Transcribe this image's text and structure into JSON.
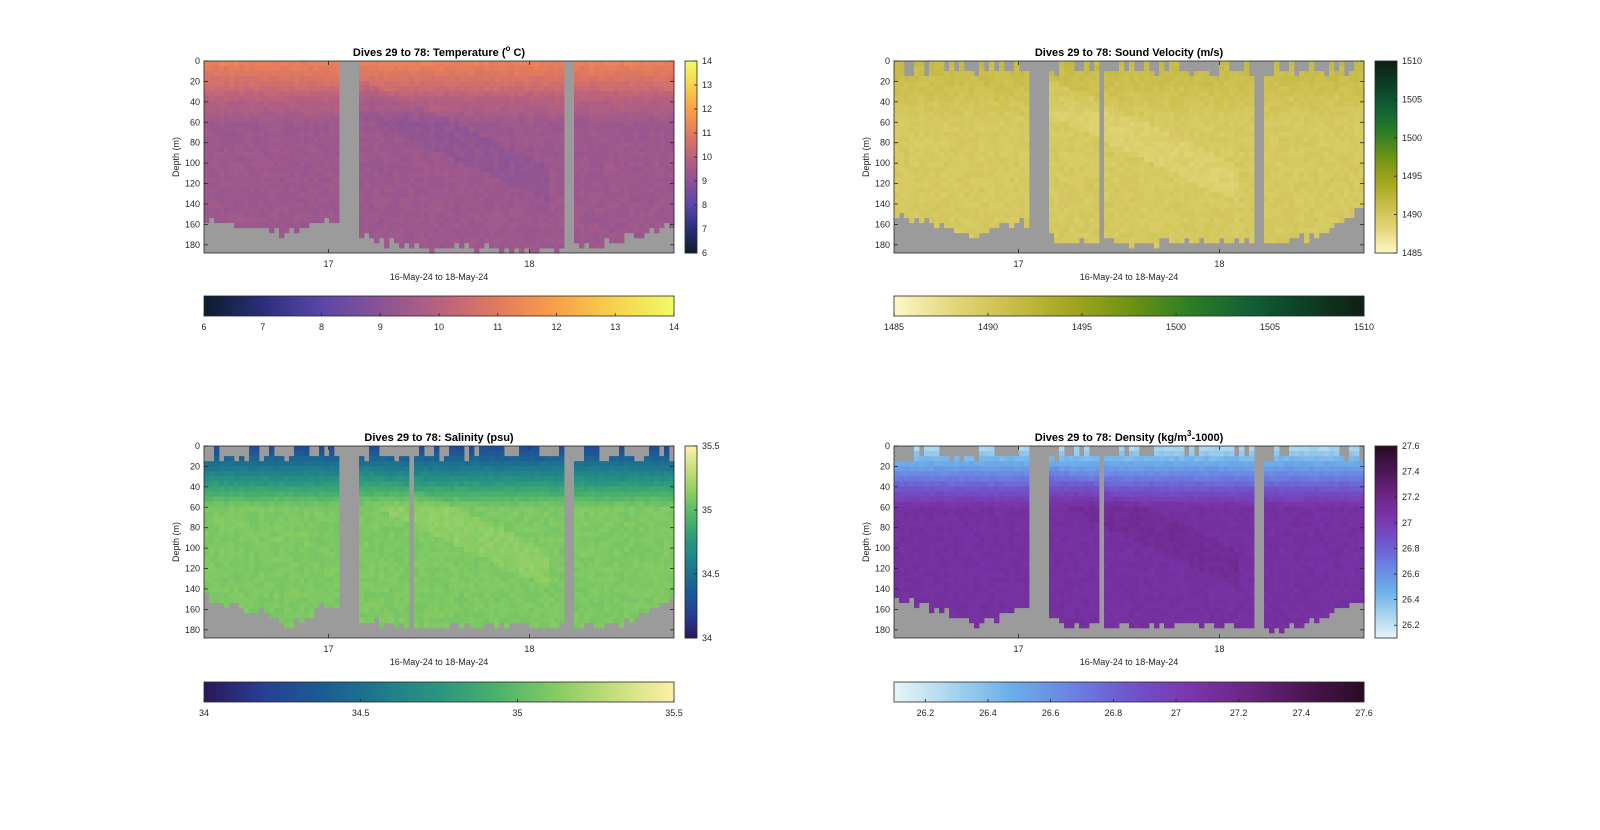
{
  "chart_data": [
    {
      "type": "heatmap",
      "id": "temperature",
      "title_main": "Dives 29 to 78: Temperature (",
      "title_sup": "o",
      "title_end": " C)",
      "xlabel": "16-May-24 to 18-May-24",
      "ylabel": "Depth (m)",
      "xlim": [
        16.38,
        18.72
      ],
      "xticks": [
        17,
        18
      ],
      "ylim": [
        0,
        188
      ],
      "yticks": [
        0,
        20,
        40,
        60,
        80,
        100,
        120,
        140,
        160,
        180
      ],
      "clim": [
        6,
        14
      ],
      "colorbar_ticks": [
        6,
        7,
        8,
        9,
        10,
        11,
        12,
        13,
        14
      ],
      "colorbar_ticklabels": [
        "6",
        "7",
        "8",
        "9",
        "10",
        "11",
        "12",
        "13",
        "14"
      ],
      "hcolorbar_ticks": [
        6,
        7,
        8,
        9,
        10,
        11,
        12,
        13,
        14
      ],
      "hcolorbar_ticklabels": [
        "6",
        "7",
        "8",
        "9",
        "10",
        "11",
        "12",
        "13",
        "14"
      ],
      "colormap": [
        "#0b1c2c",
        "#2a2f7a",
        "#5a46a8",
        "#8a5396",
        "#b8617f",
        "#e2795f",
        "#f9a048",
        "#f6d34e",
        "#f2f968"
      ],
      "surface_value": 11.3,
      "deep_value": 9.4,
      "cold_band": true,
      "data_gaps": [
        [
          17.05,
          17.14
        ],
        [
          18.16,
          18.21
        ]
      ],
      "bottom_depth_profile": [
        [
          16.38,
          153
        ],
        [
          16.6,
          160
        ],
        [
          16.8,
          170
        ],
        [
          17.0,
          155
        ],
        [
          17.2,
          175
        ],
        [
          17.5,
          184
        ],
        [
          17.8,
          184
        ],
        [
          18.1,
          184
        ],
        [
          18.3,
          180
        ],
        [
          18.5,
          172
        ],
        [
          18.72,
          160
        ]
      ],
      "missing_top": false
    },
    {
      "type": "heatmap",
      "id": "sound_velocity",
      "title_main": "Dives 29 to 78: Sound Velocity (m/s)",
      "title_sup": "",
      "title_end": "",
      "xlabel": "16-May-24 to 18-May-24",
      "ylabel": "Depth (m)",
      "xlim": [
        16.38,
        18.72
      ],
      "xticks": [
        17,
        18
      ],
      "ylim": [
        0,
        188
      ],
      "yticks": [
        0,
        20,
        40,
        60,
        80,
        100,
        120,
        140,
        160,
        180
      ],
      "clim": [
        1485,
        1510
      ],
      "colorbar_ticks": [
        1485,
        1490,
        1495,
        1500,
        1505,
        1510
      ],
      "colorbar_ticklabels": [
        "1485",
        "1490",
        "1495",
        "1500",
        "1505",
        "1510"
      ],
      "hcolorbar_ticks": [
        1485,
        1490,
        1495,
        1500,
        1505,
        1510
      ],
      "hcolorbar_ticklabels": [
        "1485",
        "1490",
        "1495",
        "1500",
        "1505",
        "1510"
      ],
      "colormap": [
        "#fdf7c9",
        "#e4d77c",
        "#c9bd4a",
        "#a3a61f",
        "#6f9314",
        "#2f7e25",
        "#126135",
        "#0e3f26",
        "#0f1f14"
      ],
      "surface_value": 1491.6,
      "deep_value": 1489.8,
      "cold_band": false,
      "data_gaps": [
        [
          17.05,
          17.14
        ],
        [
          18.16,
          18.21
        ],
        [
          17.41,
          17.43
        ]
      ],
      "bottom_depth_profile": [
        [
          16.38,
          150
        ],
        [
          16.6,
          160
        ],
        [
          16.8,
          172
        ],
        [
          17.0,
          158
        ],
        [
          17.2,
          175
        ],
        [
          17.5,
          178
        ],
        [
          17.8,
          176
        ],
        [
          18.1,
          176
        ],
        [
          18.3,
          178
        ],
        [
          18.5,
          170
        ],
        [
          18.72,
          145
        ]
      ],
      "missing_top": true
    },
    {
      "type": "heatmap",
      "id": "salinity",
      "title_main": "Dives 29 to 78: Salinity (psu)",
      "title_sup": "",
      "title_end": "",
      "xlabel": "16-May-24 to 18-May-24",
      "ylabel": "Depth (m)",
      "xlim": [
        16.38,
        18.72
      ],
      "xticks": [
        17,
        18
      ],
      "ylim": [
        0,
        188
      ],
      "yticks": [
        0,
        20,
        40,
        60,
        80,
        100,
        120,
        140,
        160,
        180
      ],
      "clim": [
        34,
        35.5
      ],
      "colorbar_ticks": [
        34,
        34.5,
        35,
        35.5
      ],
      "colorbar_ticklabels": [
        "34",
        "34.5",
        "35",
        "35.5"
      ],
      "hcolorbar_ticks": [
        34,
        34.5,
        35,
        35.5
      ],
      "hcolorbar_ticklabels": [
        "34",
        "34.5",
        "35",
        "35.5"
      ],
      "colormap": [
        "#2a1858",
        "#283e94",
        "#1b5c93",
        "#1e7a8c",
        "#2a9580",
        "#4bb26a",
        "#86cb63",
        "#c6de7c",
        "#fdf0a8"
      ],
      "surface_value": 34.25,
      "deep_value": 35.1,
      "cold_band": false,
      "data_gaps": [
        [
          17.05,
          17.14
        ],
        [
          18.16,
          18.21
        ],
        [
          17.41,
          17.43
        ]
      ],
      "bottom_depth_profile": [
        [
          16.38,
          148
        ],
        [
          16.6,
          158
        ],
        [
          16.8,
          176
        ],
        [
          17.0,
          155
        ],
        [
          17.2,
          172
        ],
        [
          17.5,
          178
        ],
        [
          17.8,
          176
        ],
        [
          18.1,
          176
        ],
        [
          18.3,
          178
        ],
        [
          18.5,
          172
        ],
        [
          18.72,
          148
        ]
      ],
      "missing_top": true
    },
    {
      "type": "heatmap",
      "id": "density",
      "title_main": "Dives 29 to 78: Density (kg/m",
      "title_sup": "3",
      "title_end": "-1000)",
      "xlabel": "16-May-24 to 18-May-24",
      "ylabel": "Depth (m)",
      "xlim": [
        16.38,
        18.72
      ],
      "xticks": [
        17,
        18
      ],
      "ylim": [
        0,
        188
      ],
      "yticks": [
        0,
        20,
        40,
        60,
        80,
        100,
        120,
        140,
        160,
        180
      ],
      "clim": [
        26.1,
        27.6
      ],
      "colorbar_ticks": [
        26.2,
        26.4,
        26.6,
        26.8,
        27,
        27.2,
        27.4,
        27.6
      ],
      "colorbar_ticklabels": [
        "26.2",
        "26.4",
        "26.6",
        "26.8",
        "27",
        "27.2",
        "27.4",
        "27.6"
      ],
      "hcolorbar_ticks": [
        26.2,
        26.4,
        26.6,
        26.8,
        27,
        27.2,
        27.4,
        27.6
      ],
      "hcolorbar_ticklabels": [
        "26.2",
        "26.4",
        "26.6",
        "26.8",
        "27",
        "27.2",
        "27.4",
        "27.6"
      ],
      "colormap": [
        "#e9f5f8",
        "#a8d4ee",
        "#6baee9",
        "#6a84e2",
        "#7055cc",
        "#7a37ad",
        "#6b2585",
        "#4b1653",
        "#2a0b22"
      ],
      "surface_value": 26.25,
      "deep_value": 27.1,
      "cold_band": false,
      "data_gaps": [
        [
          17.05,
          17.14
        ],
        [
          18.16,
          18.21
        ],
        [
          17.41,
          17.43
        ]
      ],
      "bottom_depth_profile": [
        [
          16.38,
          148
        ],
        [
          16.6,
          160
        ],
        [
          16.8,
          176
        ],
        [
          17.0,
          158
        ],
        [
          17.2,
          172
        ],
        [
          17.5,
          178
        ],
        [
          17.8,
          176
        ],
        [
          18.1,
          178
        ],
        [
          18.3,
          180
        ],
        [
          18.5,
          170
        ],
        [
          18.72,
          150
        ]
      ],
      "missing_top": true
    }
  ]
}
